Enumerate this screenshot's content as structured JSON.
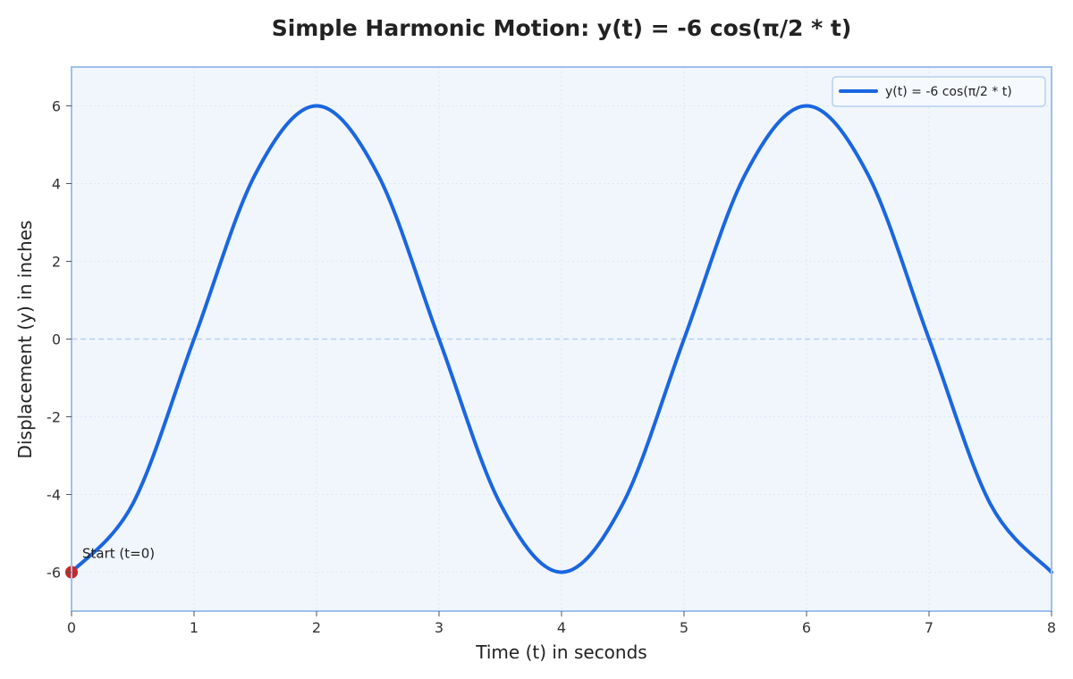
{
  "chart_data": {
    "type": "line",
    "title": "Simple Harmonic Motion: y(t) = -6 cos(π/2 * t)",
    "xlabel": "Time (t) in seconds",
    "ylabel": "Displacement (y) in inches",
    "xlim": [
      0,
      8
    ],
    "ylim": [
      -7,
      7
    ],
    "x_ticks": [
      0,
      1,
      2,
      3,
      4,
      5,
      6,
      7,
      8
    ],
    "y_ticks": [
      -6,
      -4,
      -2,
      0,
      2,
      4,
      6
    ],
    "x_tick_labels": [
      "0",
      "1",
      "2",
      "3",
      "4",
      "5",
      "6",
      "7",
      "8"
    ],
    "y_tick_labels": [
      "-6",
      "-4",
      "-2",
      "0",
      "2",
      "4",
      "6"
    ],
    "grid": true,
    "legend_position": "top-right",
    "series": [
      {
        "name": "y(t) = -6 cos(π/2 * t)",
        "color": "#1a66e0",
        "x": [
          0,
          0.5,
          1,
          1.5,
          2,
          2.5,
          3,
          3.5,
          4,
          4.5,
          5,
          5.5,
          6,
          6.5,
          7,
          7.5,
          8
        ],
        "y": [
          -6,
          -4.24,
          0,
          4.24,
          6,
          4.24,
          0,
          -4.24,
          -6,
          -4.24,
          0,
          4.24,
          6,
          4.24,
          0,
          -4.24,
          -6
        ]
      }
    ],
    "annotations": [
      {
        "text": "Start (t=0)",
        "x": 0,
        "y": -6,
        "marker_color": "#c62828"
      }
    ],
    "reference_line": {
      "y": 0,
      "style": "dashed",
      "color": "#b9d0f0"
    },
    "colors": {
      "plot_background": "#f1f6fd",
      "plot_border": "#9ec0ee",
      "grid": "#dde7f5"
    }
  }
}
